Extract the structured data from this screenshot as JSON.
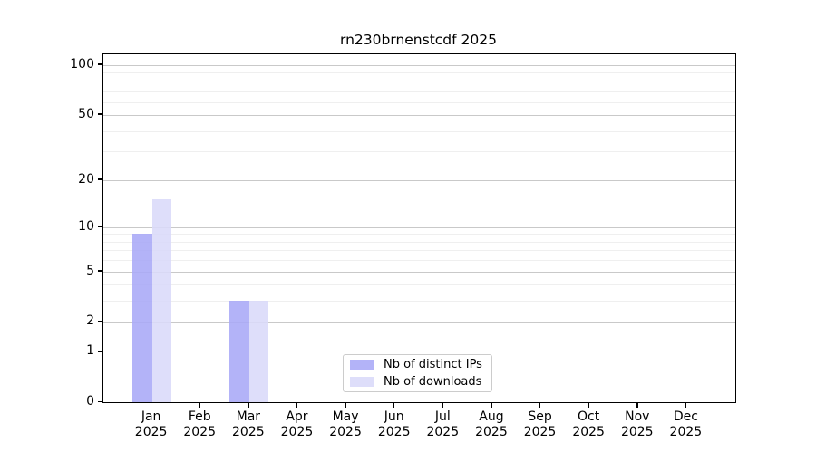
{
  "chart_data": {
    "type": "bar",
    "title": "rn230brnenstcdf 2025",
    "categories": [
      "Jan 2025",
      "Feb 2025",
      "Mar 2025",
      "Apr 2025",
      "May 2025",
      "Jun 2025",
      "Jul 2025",
      "Aug 2025",
      "Sep 2025",
      "Oct 2025",
      "Nov 2025",
      "Dec 2025"
    ],
    "series": [
      {
        "name": "Nb of distinct IPs",
        "color": "#a9a9f7",
        "values": [
          9,
          0,
          3,
          0,
          0,
          0,
          0,
          0,
          0,
          0,
          0,
          0
        ]
      },
      {
        "name": "Nb of downloads",
        "color": "#dadaf9",
        "values": [
          15,
          0,
          3,
          0,
          0,
          0,
          0,
          0,
          0,
          0,
          0,
          0
        ]
      }
    ],
    "yscale": "log1p",
    "ylim": [
      0,
      116
    ],
    "y_major_ticks": [
      0,
      1,
      2,
      5,
      10,
      20,
      50,
      100
    ],
    "y_minor_ticks": [
      3,
      4,
      6,
      7,
      8,
      9,
      30,
      40,
      60,
      70,
      80,
      90
    ],
    "xlabel": "",
    "ylabel": "",
    "grid": true,
    "legend_position": "bottom-center"
  },
  "colors": {
    "major_grid": "#c9c9c9",
    "minor_grid": "#efefef",
    "spine": "#000000",
    "background": "#ffffff"
  }
}
